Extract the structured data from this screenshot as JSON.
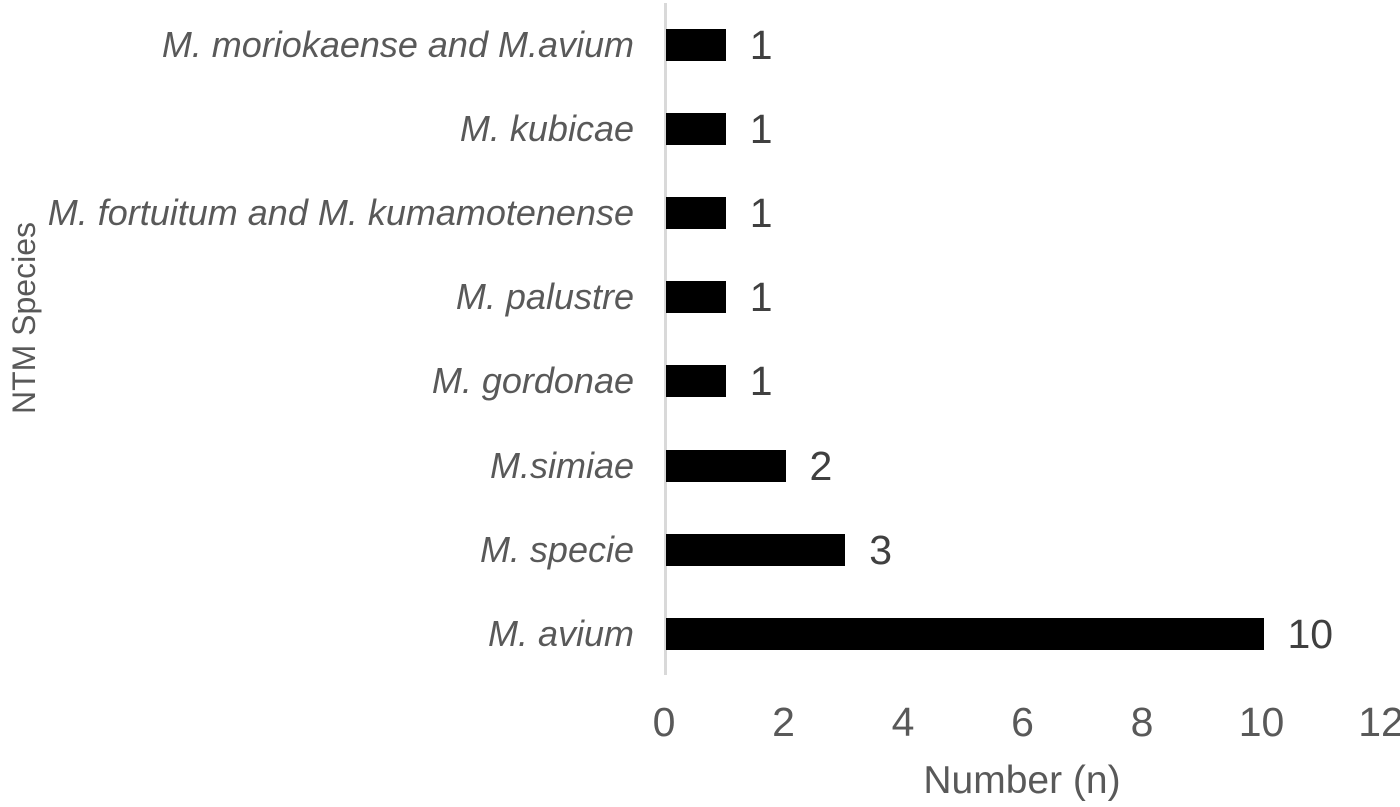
{
  "chart_data": {
    "type": "bar",
    "orientation": "horizontal",
    "title": "",
    "xlabel": "Number (n)",
    "ylabel": "NTM Species",
    "categories": [
      "M. moriokaense and M.avium",
      "M. kubicae",
      "M. fortuitum and M. kumamotenense",
      "M. palustre",
      "M. gordonae",
      "M.simiae",
      "M. specie",
      "M. avium"
    ],
    "values": [
      1,
      1,
      1,
      1,
      1,
      2,
      3,
      10
    ],
    "data_labels": [
      "1",
      "1",
      "1",
      "1",
      "1",
      "2",
      "3",
      "10"
    ],
    "xlim": [
      0,
      12
    ],
    "xticks": [
      0,
      2,
      4,
      6,
      8,
      10,
      12
    ],
    "grid": "off",
    "legend": "none",
    "colors": {
      "bar": "#000000",
      "axis_line": "#d9d9d9",
      "category_label": "#595959",
      "tick_label": "#595959",
      "data_label": "#404040",
      "axis_title": "#595959",
      "background": "#ffffff"
    }
  }
}
